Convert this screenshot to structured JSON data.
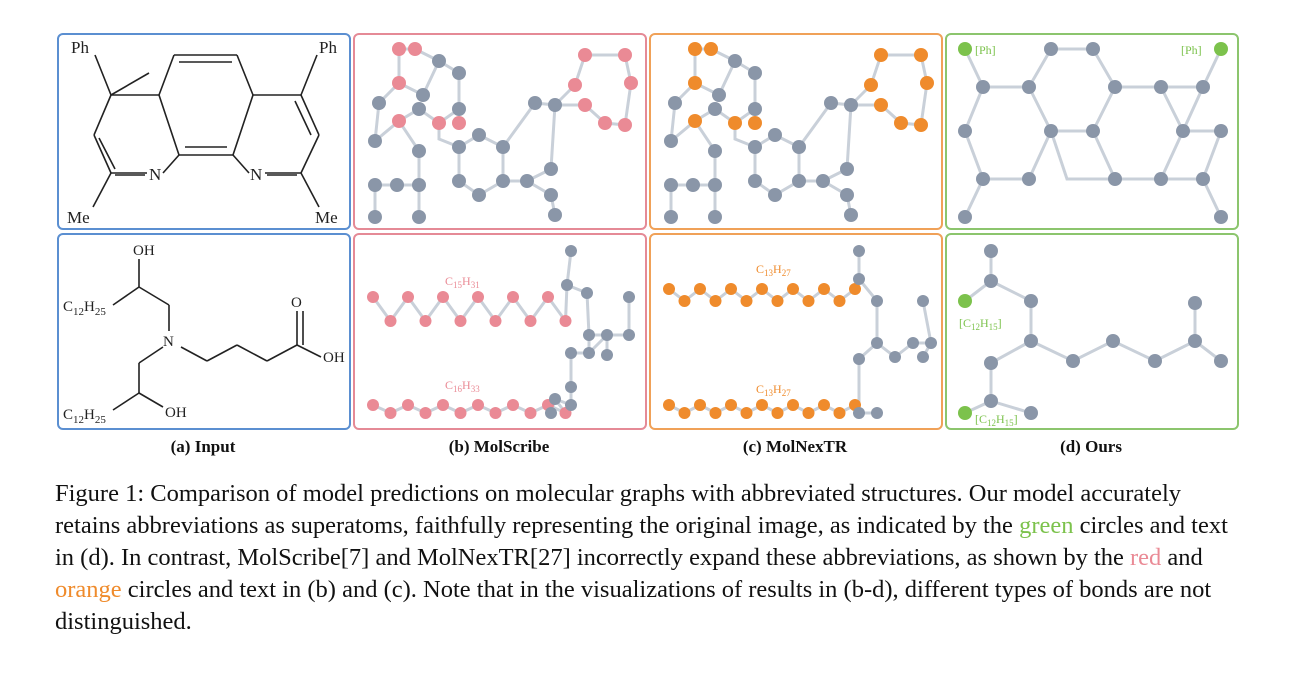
{
  "panels": {
    "input": {
      "label": "(a) Input"
    },
    "molscribe": {
      "label": "(b) MolScribe",
      "top_chain_label": "C15H31",
      "bottom_chain_label": "C16H33"
    },
    "molnextr": {
      "label": "(c) MolNexTR",
      "top_chain_label": "C13H27",
      "bottom_chain_label": "C13H27"
    },
    "ours": {
      "label": "(d) Ours",
      "superatom_ph": "[Ph]",
      "superatom_c12": "[C12H15]"
    }
  },
  "molecule_a": {
    "top_left_substituent": "Ph",
    "top_right_substituent": "Ph",
    "bottom_left_substituent": "Me",
    "bottom_right_substituent": "Me",
    "n_left": "N",
    "n_right": "N",
    "oh_top": "OH",
    "oh_bottom": "OH",
    "oh_acid": "OH",
    "o_carbonyl": "O",
    "n_center": "N",
    "chain_top": "C12H25",
    "chain_bottom": "C12H25"
  },
  "caption": {
    "prefix": "Figure 1: Comparison of model predictions on molecular graphs with abbreviated structures. Our model accurately retains abbreviations as superatoms, faithfully representing the original image, as indicated by the ",
    "green_word": "green",
    "middle": " circles and text in (d).  In contrast, MolScribe[7] and MolNexTR[27] incorrectly expand these abbreviations, as shown by the ",
    "red_word": "red",
    "and_word": " and ",
    "orange_word": "orange",
    "suffix": " circles and text in (b) and (c). Note that in the visualizations of results in (b-d), different types of bonds are not distinguished."
  },
  "colors": {
    "node_gray": "#8a96a8",
    "edge_gray": "#c9d0d9",
    "red": "#ea8a95",
    "orange": "#ef8b2c",
    "green": "#7cc24c",
    "blue_border": "#5b8fd1"
  }
}
